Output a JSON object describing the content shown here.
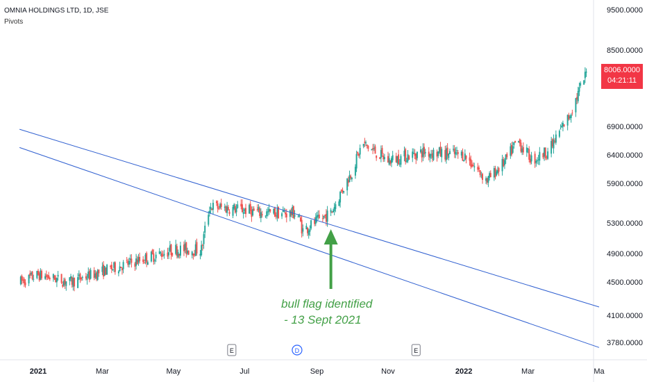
{
  "header": {
    "symbol": "OMNIA HOLDINGS LTD, 1D, JSE",
    "indicator": "Pivots"
  },
  "price_tag": {
    "price": "8006.0000",
    "countdown": "04:21:11"
  },
  "colors": {
    "up": "#26a69a",
    "down": "#ef5350",
    "channel": "#2f5fd0",
    "arrow": "#43a047",
    "tag": "#f23645"
  },
  "chart_data": {
    "type": "candlestick",
    "x_ticks": [
      "2021",
      "Mar",
      "May",
      "Jul",
      "Sep",
      "Nov",
      "2022",
      "Mar",
      "Ma"
    ],
    "y_ticks": [
      "9500.0000",
      "8500.0000",
      "8006.0000",
      "6900.0000",
      "6400.0000",
      "5900.0000",
      "5300.0000",
      "4900.0000",
      "4500.0000",
      "4100.0000",
      "3780.0000"
    ],
    "y_tick_values": [
      9500,
      8500,
      8006,
      6900,
      6400,
      5900,
      5300,
      4900,
      4500,
      4100,
      3780
    ],
    "last_price": 8006,
    "trend": [
      [
        "2020-12-20",
        4500
      ],
      [
        "2021-01-05",
        4600
      ],
      [
        "2021-02-01",
        4500
      ],
      [
        "2021-03-01",
        4650
      ],
      [
        "2021-04-01",
        4800
      ],
      [
        "2021-05-01",
        4950
      ],
      [
        "2021-05-25",
        4950
      ],
      [
        "2021-06-01",
        5550
      ],
      [
        "2021-07-01",
        5500
      ],
      [
        "2021-07-15",
        5450
      ],
      [
        "2021-08-15",
        5450
      ],
      [
        "2021-08-20",
        5200
      ],
      [
        "2021-09-13",
        5450
      ],
      [
        "2021-10-01",
        6100
      ],
      [
        "2021-10-10",
        6600
      ],
      [
        "2021-11-01",
        6300
      ],
      [
        "2021-12-01",
        6450
      ],
      [
        "2022-01-05",
        6400
      ],
      [
        "2022-01-25",
        5950
      ],
      [
        "2022-02-10",
        6300
      ],
      [
        "2022-02-20",
        6650
      ],
      [
        "2022-03-05",
        6300
      ],
      [
        "2022-03-20",
        6500
      ],
      [
        "2022-04-05",
        7100
      ],
      [
        "2022-04-20",
        8006
      ]
    ],
    "channel_lines": [
      {
        "name": "upper",
        "start": [
          "2020-12-20",
          6850
        ],
        "end": [
          "2022-05-01",
          4200
        ]
      },
      {
        "name": "lower",
        "start": [
          "2020-12-20",
          6530
        ],
        "end": [
          "2022-05-01",
          3720
        ]
      }
    ],
    "event_markers": [
      {
        "date": "2021-06-20",
        "label": "E"
      },
      {
        "date": "2021-08-15",
        "label": "D"
      },
      {
        "date": "2021-11-25",
        "label": "E"
      }
    ],
    "annotation": {
      "line1": "bull flag identified",
      "line2": "- 13 Sept 2021",
      "date": "2021-09-13"
    }
  }
}
